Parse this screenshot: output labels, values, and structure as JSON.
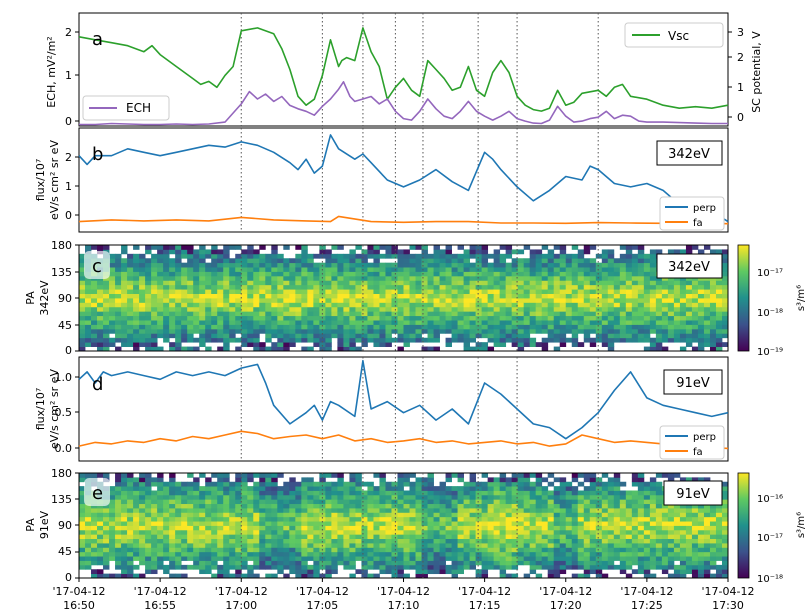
{
  "chart_data": [
    {
      "panel": "a",
      "type": "line",
      "ylabel": "ECH, mV²/m²",
      "y2label": "SC potential, V",
      "yticks": [
        "0",
        "1",
        "2"
      ],
      "y2ticks": [
        "0",
        "1",
        "2",
        "3"
      ],
      "ylim": [
        0,
        2.3
      ],
      "y2lim": [
        -0.4,
        3.4
      ],
      "legend_position": "top-right and lower-left",
      "series": [
        {
          "name": "ECH",
          "axis": "left",
          "color": "#9467bd",
          "x": [
            0,
            1,
            2,
            3,
            4,
            5,
            6,
            7,
            8,
            9,
            10,
            10.5,
            11,
            11.5,
            12,
            12.5,
            13,
            13.5,
            14,
            14.5,
            15,
            15.5,
            16,
            16.3,
            16.7,
            17,
            17.5,
            18,
            18.5,
            19,
            19.5,
            20,
            20.5,
            21,
            21.5,
            22,
            22.5,
            23,
            23.5,
            24,
            24.5,
            25,
            25.5,
            26,
            26.5,
            27,
            27.5,
            28,
            28.5,
            29,
            29.5,
            30,
            30.5,
            31,
            31.5,
            32,
            32.5,
            33,
            33.5,
            34,
            34.5,
            35,
            36,
            37,
            38,
            39,
            40
          ],
          "y": [
            0.03,
            0.03,
            0.05,
            0.04,
            0.03,
            0.03,
            0.04,
            0.03,
            0.04,
            0.08,
            0.45,
            0.7,
            0.55,
            0.65,
            0.5,
            0.6,
            0.42,
            0.35,
            0.3,
            0.22,
            0.4,
            0.55,
            0.75,
            0.9,
            0.6,
            0.5,
            0.55,
            0.6,
            0.45,
            0.55,
            0.3,
            0.15,
            0.12,
            0.3,
            0.55,
            0.35,
            0.2,
            0.15,
            0.3,
            0.5,
            0.3,
            0.2,
            0.12,
            0.2,
            0.3,
            0.15,
            0.1,
            0.06,
            0.05,
            0.12,
            0.4,
            0.2,
            0.08,
            0.1,
            0.15,
            0.18,
            0.3,
            0.15,
            0.22,
            0.2,
            0.1,
            0.08,
            0.08,
            0.07,
            0.06,
            0.05,
            0.05
          ]
        },
        {
          "name": "Vsc",
          "axis": "right",
          "color": "#2ca02c",
          "x": [
            0,
            1,
            2,
            3,
            4,
            4.5,
            5,
            6,
            7,
            7.5,
            8,
            8.5,
            9,
            9.5,
            10,
            11,
            12,
            12.5,
            13,
            13.5,
            14,
            14.5,
            15,
            15.5,
            16,
            16.2,
            16.5,
            17,
            17.5,
            18,
            18.5,
            19,
            19.5,
            20,
            20.5,
            21,
            21.5,
            22,
            22.5,
            23,
            23.5,
            24,
            24.5,
            25,
            25.5,
            26,
            26.5,
            27,
            27.5,
            28,
            28.5,
            29,
            29.5,
            30,
            30.5,
            31,
            32,
            32.5,
            33,
            33.5,
            34,
            35,
            36,
            37,
            38,
            39,
            40
          ],
          "y": [
            2.6,
            2.5,
            2.4,
            2.3,
            2.1,
            2.3,
            2.0,
            1.6,
            1.2,
            1.0,
            1.1,
            0.9,
            1.3,
            1.6,
            2.8,
            2.9,
            2.7,
            2.2,
            1.5,
            0.6,
            0.3,
            0.5,
            1.3,
            2.5,
            1.6,
            1.8,
            1.9,
            1.8,
            2.9,
            2.1,
            1.6,
            0.5,
            0.9,
            1.2,
            0.8,
            0.6,
            1.8,
            1.5,
            1.2,
            0.8,
            0.9,
            1.6,
            0.8,
            0.6,
            1.4,
            1.8,
            1.4,
            0.6,
            0.3,
            0.15,
            0.1,
            0.2,
            0.8,
            0.3,
            0.4,
            0.7,
            0.8,
            0.6,
            0.9,
            1.0,
            0.6,
            0.5,
            0.3,
            0.2,
            0.25,
            0.2,
            0.3
          ]
        }
      ]
    },
    {
      "panel": "b",
      "type": "line",
      "energy_label": "342eV",
      "ylabel": "flux/10⁷",
      "ylabel2": "eV/s cm² sr eV",
      "yticks": [
        "0",
        "1",
        "2"
      ],
      "ylim": [
        -0.2,
        2.8
      ],
      "legend_position": "lower-right",
      "series": [
        {
          "name": "perp",
          "color": "#1f77b4",
          "x": [
            0,
            0.5,
            1,
            2,
            3,
            4,
            5,
            6,
            7,
            8,
            9,
            10,
            11,
            12,
            13,
            13.5,
            14,
            14.5,
            15,
            15.5,
            16,
            17,
            17.5,
            18,
            19,
            20,
            21,
            22,
            23,
            24,
            25,
            25.5,
            26,
            27,
            28,
            29,
            30,
            31,
            31.5,
            32,
            33,
            34,
            35,
            36,
            37,
            38,
            39,
            40
          ],
          "y": [
            2.0,
            1.75,
            2.0,
            2.0,
            2.2,
            2.1,
            2.0,
            2.1,
            2.2,
            2.3,
            2.25,
            2.4,
            2.3,
            2.1,
            1.8,
            1.6,
            1.9,
            1.5,
            1.7,
            2.6,
            2.2,
            1.9,
            2.05,
            1.8,
            1.3,
            1.1,
            1.3,
            1.6,
            1.25,
            1.0,
            2.1,
            1.9,
            1.6,
            1.1,
            0.7,
            1.0,
            1.4,
            1.3,
            1.7,
            1.6,
            1.2,
            1.1,
            1.2,
            1.0,
            0.6,
            0.5,
            0.4,
            0.1
          ]
        },
        {
          "name": "fa",
          "color": "#ff7f0e",
          "x": [
            0,
            2,
            4,
            6,
            8,
            10,
            12,
            14,
            15.5,
            16,
            18,
            20,
            22,
            24,
            26,
            28,
            30,
            32,
            34,
            36,
            38,
            40
          ],
          "y": [
            0.1,
            0.15,
            0.12,
            0.15,
            0.12,
            0.22,
            0.15,
            0.12,
            0.1,
            0.25,
            0.1,
            0.08,
            0.1,
            0.1,
            0.06,
            0.06,
            0.05,
            0.07,
            0.06,
            0.05,
            0.05,
            0.04
          ]
        }
      ]
    },
    {
      "panel": "c",
      "type": "heatmap",
      "energy_label": "342eV",
      "ylabel": "PA",
      "ylabel2": "342eV",
      "yticks": [
        "0",
        "45",
        "90",
        "135",
        "180"
      ],
      "colorbar_label": "s³/m⁶",
      "colorbar_ticks": [
        "10⁻¹⁹",
        "10⁻¹⁸",
        "10⁻¹⁷"
      ]
    },
    {
      "panel": "d",
      "type": "line",
      "energy_label": "91eV",
      "ylabel": "flux/10⁷",
      "ylabel2": "eV/s cm² sr eV",
      "yticks": [
        "0.0",
        "0.5",
        "1.0"
      ],
      "ylim": [
        -0.15,
        1.25
      ],
      "legend_position": "lower-right",
      "series": [
        {
          "name": "perp",
          "color": "#1f77b4",
          "x": [
            0,
            0.5,
            1,
            1.5,
            2,
            3,
            4,
            5,
            6,
            7,
            8,
            9,
            10,
            11,
            11.5,
            12,
            13,
            14,
            14.5,
            15,
            15.5,
            16,
            17,
            17.5,
            18,
            19,
            20,
            21,
            22,
            23,
            24,
            25,
            26,
            27,
            28,
            29,
            30,
            31,
            32,
            33,
            34,
            35,
            36,
            37,
            38,
            39,
            40
          ],
          "y": [
            0.95,
            1.05,
            0.9,
            1.05,
            1.0,
            1.05,
            1.0,
            0.95,
            1.05,
            1.0,
            1.05,
            1.0,
            1.1,
            1.15,
            0.9,
            0.6,
            0.35,
            0.5,
            0.6,
            0.4,
            0.65,
            0.6,
            0.45,
            1.2,
            0.55,
            0.65,
            0.5,
            0.6,
            0.4,
            0.55,
            0.35,
            0.9,
            0.75,
            0.55,
            0.35,
            0.3,
            0.15,
            0.3,
            0.5,
            0.8,
            1.05,
            0.7,
            0.6,
            0.55,
            0.5,
            0.45,
            0.5
          ]
        },
        {
          "name": "fa",
          "color": "#ff7f0e",
          "x": [
            0,
            1,
            2,
            3,
            4,
            5,
            6,
            7,
            8,
            9,
            10,
            11,
            12,
            13,
            14,
            15,
            16,
            17,
            18,
            19,
            20,
            21,
            22,
            23,
            24,
            25,
            26,
            27,
            28,
            29,
            30,
            31,
            32,
            33,
            34,
            35,
            36,
            37,
            38,
            39,
            40
          ],
          "y": [
            0.05,
            0.1,
            0.08,
            0.12,
            0.1,
            0.15,
            0.12,
            0.18,
            0.15,
            0.2,
            0.25,
            0.22,
            0.15,
            0.18,
            0.2,
            0.15,
            0.2,
            0.12,
            0.15,
            0.1,
            0.12,
            0.15,
            0.1,
            0.12,
            0.08,
            0.1,
            0.12,
            0.08,
            0.1,
            0.05,
            0.08,
            0.2,
            0.15,
            0.1,
            0.12,
            0.1,
            0.08,
            0.06,
            0.05,
            0.03,
            0.02
          ]
        }
      ]
    },
    {
      "panel": "e",
      "type": "heatmap",
      "energy_label": "91eV",
      "ylabel": "PA",
      "ylabel2": "91eV",
      "yticks": [
        "0",
        "45",
        "90",
        "135",
        "180"
      ],
      "colorbar_label": "s³/m⁶",
      "colorbar_ticks": [
        "10⁻¹⁸",
        "10⁻¹⁷",
        "10⁻¹⁶"
      ]
    }
  ],
  "shared_x": {
    "type": "time",
    "range": [
      "2017-04-12 16:50",
      "2017-04-12 17:30"
    ],
    "ticks": [
      {
        "date": "'17-04-12",
        "time": "16:50",
        "minute": 0
      },
      {
        "date": "'17-04-12",
        "time": "16:55",
        "minute": 5
      },
      {
        "date": "'17-04-12",
        "time": "17:00",
        "minute": 10
      },
      {
        "date": "'17-04-12",
        "time": "17:05",
        "minute": 15
      },
      {
        "date": "'17-04-12",
        "time": "17:10",
        "minute": 20
      },
      {
        "date": "'17-04-12",
        "time": "17:15",
        "minute": 25
      },
      {
        "date": "'17-04-12",
        "time": "17:20",
        "minute": 30
      },
      {
        "date": "'17-04-12",
        "time": "17:25",
        "minute": 35
      },
      {
        "date": "'17-04-12",
        "time": "17:30",
        "minute": 40
      }
    ],
    "event_lines_minutes": [
      10,
      15,
      17.5,
      19.5,
      21.2,
      24.6,
      27,
      32
    ],
    "event_lines_time": [
      "17:00:00",
      "17:05:00",
      "17:07:30",
      "17:09:30",
      "17:11:12",
      "17:14:36",
      "17:17:00",
      "17:22:00"
    ]
  }
}
